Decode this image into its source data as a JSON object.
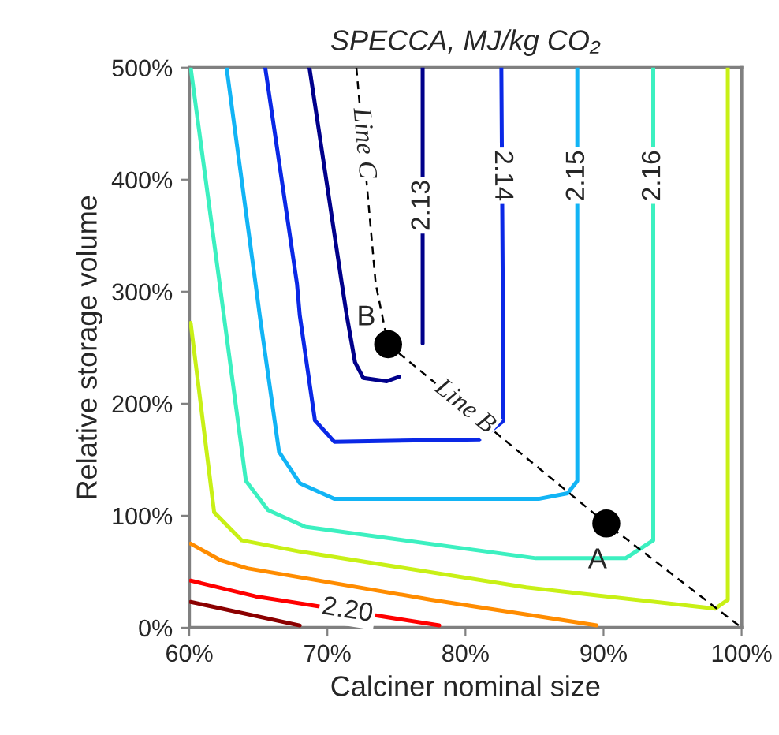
{
  "chart_data": {
    "type": "line",
    "title": "SPECCA, MJ/kg CO₂",
    "xlabel": "Calciner nominal size",
    "ylabel": "Relative storage volume",
    "xlim": [
      60,
      100
    ],
    "ylim": [
      0,
      500
    ],
    "xticks": [
      {
        "value": 60,
        "label": "60%"
      },
      {
        "value": 70,
        "label": "70%"
      },
      {
        "value": 80,
        "label": "80%"
      },
      {
        "value": 90,
        "label": "90%"
      },
      {
        "value": 100,
        "label": "100%"
      }
    ],
    "yticks": [
      {
        "value": 0,
        "label": "0%"
      },
      {
        "value": 100,
        "label": "100%"
      },
      {
        "value": 200,
        "label": "200%"
      },
      {
        "value": 300,
        "label": "300%"
      },
      {
        "value": 400,
        "label": "400%"
      },
      {
        "value": 500,
        "label": "500%"
      }
    ],
    "grid": false,
    "legend": false,
    "marker": "none",
    "series": [
      {
        "color": "#00008b",
        "x": [
          68.7,
          71.05,
          71.4,
          72.0,
          72.6,
          74.3,
          75.2
        ],
        "values": [
          500,
          307,
          279,
          237,
          223,
          220,
          224
        ]
      },
      {
        "name": "2.13",
        "color": "#00008b",
        "x": [
          76.9,
          76.9
        ],
        "values": [
          254,
          500
        ]
      },
      {
        "name": "2.14",
        "color": "#0a28e6",
        "x": [
          65.5,
          67.8,
          68.0,
          69.1,
          70.5,
          81.0,
          82.7,
          82.7,
          82.6
        ],
        "values": [
          500,
          307,
          279,
          185,
          166,
          168,
          184,
          307,
          500
        ]
      },
      {
        "name": "2.15",
        "color": "#12b4f5",
        "x": [
          62.7,
          64.8,
          65.1,
          66.5,
          68.0,
          70.5,
          85.3,
          87.4,
          88.1,
          88.1,
          88.1
        ],
        "values": [
          500,
          307,
          279,
          157,
          129,
          115,
          115,
          120,
          131,
          307,
          500
        ]
      },
      {
        "name": "2.16",
        "color": "#3cf0c0",
        "x": [
          60.1,
          62.2,
          62.5,
          64.1,
          65.7,
          68.4,
          85.1,
          91.6,
          93.6,
          93.6,
          93.6
        ],
        "values": [
          500,
          307,
          279,
          131,
          105,
          90,
          62,
          62,
          78,
          307,
          500
        ]
      },
      {
        "color": "#c8f016",
        "x": [
          60.1,
          61.8,
          63.8,
          68.0,
          84.4,
          98.1,
          99.0,
          99.0,
          99.0
        ],
        "values": [
          272,
          103,
          78,
          68,
          36,
          17,
          25,
          307,
          500
        ]
      },
      {
        "color": "#ff8c00",
        "x": [
          60.1,
          62.3,
          64.2,
          77.5,
          89.5
        ],
        "values": [
          75,
          60,
          53,
          25,
          2
        ]
      },
      {
        "name": "2.20",
        "color": "#ff0000",
        "x": [
          60.1,
          64.8,
          78.1
        ],
        "values": [
          42,
          28,
          2
        ]
      },
      {
        "color": "#8b0000",
        "x": [
          60.1,
          68.0
        ],
        "values": [
          23,
          2
        ]
      },
      {
        "name": "Line C",
        "color": "#000000",
        "line_style": "dashed",
        "x": [
          72.1,
          73.5,
          74.4
        ],
        "values": [
          500,
          307,
          253
        ]
      },
      {
        "name": "Line B",
        "color": "#000000",
        "line_style": "dashed",
        "x": [
          74.4,
          90.2,
          100
        ],
        "values": [
          253,
          93,
          0
        ]
      },
      {
        "name": "B",
        "type": "scatter",
        "marker": "circle",
        "color": "#000000",
        "x": [
          74.4
        ],
        "values": [
          253
        ]
      },
      {
        "name": "A",
        "type": "scatter",
        "marker": "circle",
        "color": "#000000",
        "x": [
          90.2
        ],
        "values": [
          93
        ]
      }
    ]
  }
}
